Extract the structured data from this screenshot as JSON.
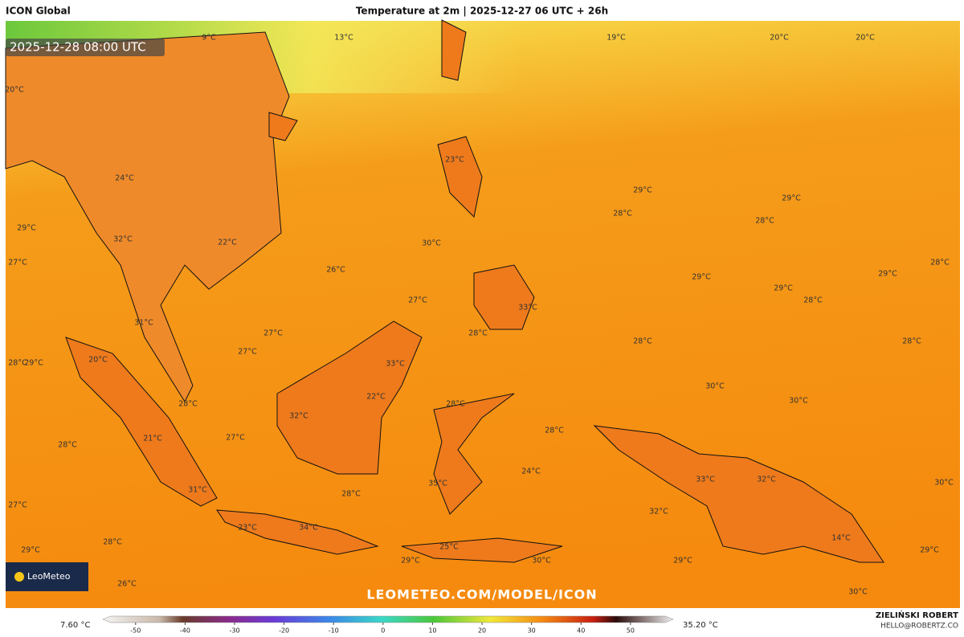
{
  "header": {
    "model": "ICON Global",
    "title": "Temperature at 2m | 2025-12-27 06 UTC + 26h"
  },
  "valid_time": "2025-12-28 08:00 UTC",
  "map_labels": [
    "9°C",
    "13°C",
    "19°C",
    "20°C",
    "20°C",
    "20°C",
    "23°C",
    "24°C",
    "29°C",
    "29°C",
    "28°C",
    "28°C",
    "29°C",
    "32°C",
    "22°C",
    "30°C",
    "27°C",
    "26°C",
    "28°C",
    "29°C",
    "29°C",
    "29°C",
    "27°C",
    "28°C",
    "33°C",
    "31°C",
    "27°C",
    "28°C",
    "28°C",
    "28°C",
    "27°C",
    "28°C",
    "29°C",
    "20°C",
    "33°C",
    "30°C",
    "22°C",
    "28°C",
    "30°C",
    "28°C",
    "32°C",
    "28°C",
    "21°C",
    "27°C",
    "28°C",
    "24°C",
    "33°C",
    "32°C",
    "30°C",
    "35°C",
    "31°C",
    "28°C",
    "27°C",
    "32°C",
    "23°C",
    "34°C",
    "14°C",
    "28°C",
    "25°C",
    "29°C",
    "29°C",
    "29°C",
    "30°C",
    "29°C",
    "26°C",
    "30°C"
  ],
  "watermark": "LEOMETEO.COM/MODEL/ICON",
  "logo": "LeoMeteo",
  "colorbar": {
    "min_label": "7.60 °C",
    "max_label": "35.20 °C",
    "lim": [
      -55,
      57
    ],
    "ticks": [
      -50,
      -40,
      -30,
      -20,
      -10,
      0,
      10,
      20,
      30,
      40,
      50
    ]
  },
  "credit": {
    "name": "ZIELIŃSKI ROBERT",
    "email": "HELLO@ROBERTZ.CO"
  }
}
